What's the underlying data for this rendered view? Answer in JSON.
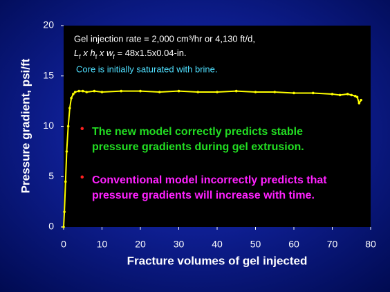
{
  "chart_data": {
    "type": "line",
    "x_label": "Fracture volumes of gel injected",
    "y_label": "Pressure gradient, psi/ft",
    "xlim": [
      0,
      80
    ],
    "xticks": [
      0,
      10,
      20,
      30,
      40,
      50,
      60,
      70,
      80
    ],
    "ylim": [
      0,
      20
    ],
    "yticks": [
      0,
      5,
      10,
      15,
      20
    ],
    "annotations": {
      "rate": "Gel injection rate = 2,000 cm³/hr or 4,130 ft/d,",
      "dimensions": [
        "L",
        "f",
        " x h",
        "f",
        " x w",
        "f",
        " = 48x1.5x0.04-in."
      ],
      "core": "Core is initially saturated with brine.",
      "new_model": [
        "The new model correctly predicts stable",
        "pressure gradients during gel extrusion."
      ],
      "conventional_model": [
        "Conventional model incorrectly predicts that",
        "pressure gradients will increase with time."
      ]
    },
    "series": [
      {
        "color": "#ffff00",
        "x": [
          0,
          0.2,
          0.5,
          0.8,
          1.2,
          1.6,
          2,
          2.5,
          3,
          4,
          5,
          6,
          8,
          10,
          15,
          20,
          25,
          30,
          35,
          40,
          45,
          50,
          55,
          60,
          65,
          70,
          72,
          74,
          75,
          76,
          76.5,
          77,
          77.5
        ],
        "values": [
          0,
          1.5,
          4.5,
          7.5,
          10,
          11.8,
          12.8,
          13.2,
          13.4,
          13.5,
          13.5,
          13.4,
          13.5,
          13.4,
          13.5,
          13.5,
          13.4,
          13.5,
          13.4,
          13.4,
          13.5,
          13.4,
          13.4,
          13.3,
          13.3,
          13.2,
          13.1,
          13.2,
          13.1,
          13.0,
          12.9,
          12.3,
          12.6
        ]
      }
    ]
  }
}
